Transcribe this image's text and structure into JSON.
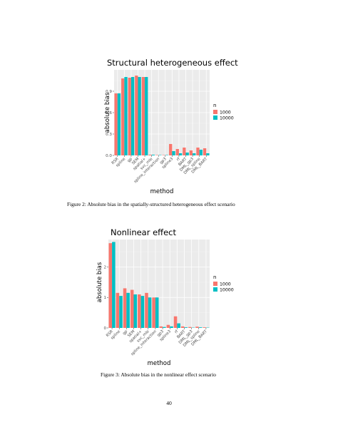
{
  "chart_data": [
    {
      "type": "bar",
      "title": "Structural heterogeneous effect",
      "xlabel": "method",
      "ylabel": "absolute bias",
      "categories": [
        "RSR",
        "spline",
        "gp",
        "SEM",
        "spatial+",
        "svc_mle",
        "spline_interaction",
        "gp3",
        "spline3",
        "rf",
        "BART",
        "DML_gp3",
        "DML_spline",
        "DML_BART"
      ],
      "series": [
        {
          "name": "1000",
          "values": [
            0.87,
            1.08,
            1.09,
            1.12,
            1.1,
            0.01,
            0.005,
            0.005,
            0.16,
            0.09,
            0.11,
            0.07,
            0.11,
            0.1
          ]
        },
        {
          "name": "10000",
          "values": [
            0.87,
            1.1,
            1.1,
            1.1,
            1.1,
            0.01,
            0.005,
            0.005,
            0.06,
            0.03,
            0.04,
            0.03,
            0.08,
            0.03
          ]
        }
      ],
      "yticks": [
        0.0,
        0.3,
        0.6,
        0.9
      ],
      "ytick_labels": [
        "0.0",
        "0.3",
        "0.6",
        "0.9"
      ],
      "ylim": [
        0,
        1.2
      ],
      "legend_title": "n",
      "legend_position": "right",
      "colors": [
        "#F8766D",
        "#00BFC4"
      ],
      "grid": true
    },
    {
      "type": "bar",
      "title": "Nonlinear effect",
      "xlabel": "method",
      "ylabel": "absolute bias",
      "categories": [
        "RSR",
        "spline",
        "gp",
        "SEM",
        "spatial+",
        "svc_mle",
        "spline_interaction",
        "gp3",
        "spline3",
        "rf",
        "BART",
        "DML_gp3",
        "DML_spline",
        "DML_BART"
      ],
      "series": [
        {
          "name": "1000",
          "values": [
            2.78,
            1.15,
            1.3,
            1.25,
            1.1,
            1.15,
            1.0,
            0.05,
            0.1,
            0.38,
            0.05,
            0.03,
            0.04,
            0.02
          ]
        },
        {
          "name": "10000",
          "values": [
            2.82,
            1.05,
            1.15,
            1.1,
            1.05,
            1.0,
            1.0,
            0.03,
            0.05,
            0.15,
            0.02,
            0.01,
            0.02,
            0.01
          ]
        }
      ],
      "yticks": [
        0,
        1,
        2
      ],
      "ytick_labels": [
        "0",
        "1",
        "2"
      ],
      "ylim": [
        0,
        2.9
      ],
      "legend_title": "n",
      "legend_position": "right",
      "colors": [
        "#F8766D",
        "#00BFC4"
      ],
      "grid": true
    }
  ],
  "captions": {
    "figure2": "Figure 2: Absolute bias in the spatially-structured heterogeneous effect scenario",
    "figure3": "Figure 3: Absolute bias in the nonlinear effect scenario"
  },
  "page_number": "40"
}
